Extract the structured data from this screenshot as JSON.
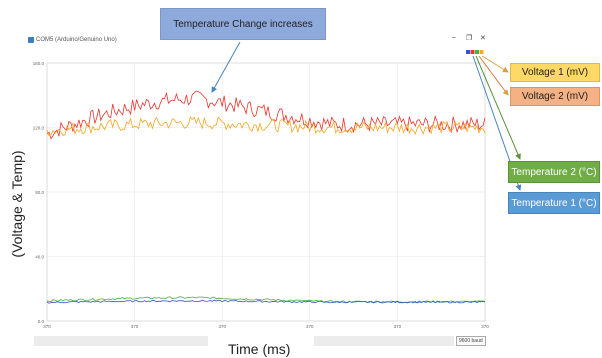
{
  "window": {
    "title": "COM5 (Arduino/Genuino Uno)",
    "minimize_glyph": "–",
    "maximize_glyph": "❐",
    "close_glyph": "✕"
  },
  "annotations": {
    "temperature_change": "Temperature Change increases",
    "voltage1": "Voltage 1 (mV)",
    "voltage2": "Voltage 2 (mV)",
    "temperature2": "Temperature 2 (°C)",
    "temperature1": "Temperature 1 (°C)"
  },
  "footer": {
    "baud_value": "9600 baud"
  },
  "colors": {
    "voltage1": "#f5a623",
    "voltage2": "#e8352e",
    "temperature2": "#3bb54a",
    "temperature1": "#3a4fd6",
    "grid": "#e6e6e6"
  },
  "chart_data": {
    "type": "line",
    "title": "",
    "ylabel": "(Voltage & Temp)",
    "xlabel": "Time (ms)",
    "ylim": [
      0.0,
      160.0
    ],
    "y_ticks": [
      "160.0",
      "120.0",
      "80.0",
      "40.0",
      "0.0"
    ],
    "x_tick_labels": [
      "370",
      "370",
      "370",
      "370",
      "370",
      "370"
    ],
    "grid": true,
    "series": [
      {
        "key": "voltage2",
        "start": 116,
        "peak": 138,
        "peak_at": 0.35,
        "end": 122,
        "noise": 5
      },
      {
        "key": "voltage1",
        "start": 118,
        "peak": 123,
        "peak_at": 0.35,
        "end": 120,
        "noise": 4
      },
      {
        "key": "temperature2",
        "start": 12.5,
        "peak": 14.5,
        "peak_at": 0.35,
        "end": 12.0,
        "noise": 0.6
      },
      {
        "key": "temperature1",
        "start": 11.5,
        "peak": 12.5,
        "peak_at": 0.35,
        "end": 11.7,
        "noise": 0.5
      }
    ]
  }
}
